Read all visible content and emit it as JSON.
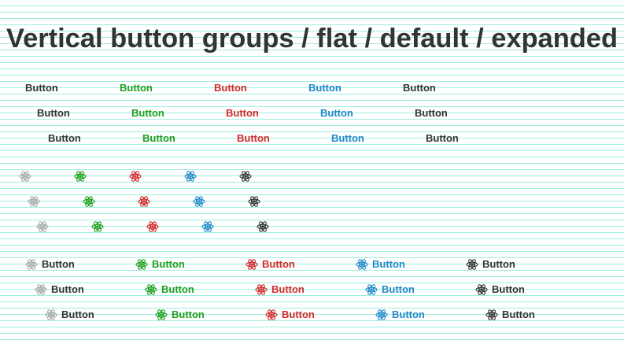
{
  "header": {
    "title": "Vertical button groups / flat / default / expanded"
  },
  "text_buttons": [
    [
      "Button",
      "Button",
      "Button",
      "Button",
      "Button"
    ],
    [
      "Button",
      "Button",
      "Button",
      "Button",
      "Button"
    ],
    [
      "Button",
      "Button",
      "Button",
      "Button",
      "Button"
    ]
  ],
  "icon_text_buttons": [
    [
      "Button",
      "Button",
      "Button",
      "Button",
      "Button"
    ],
    [
      "Button",
      "Button",
      "Button",
      "Button",
      "Button"
    ],
    [
      "Button",
      "Button",
      "Button",
      "Button",
      "Button"
    ]
  ]
}
